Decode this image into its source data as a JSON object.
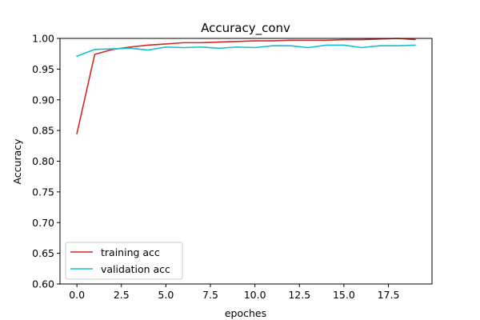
{
  "chart_data": {
    "type": "line",
    "title": "Accuracy_conv",
    "xlabel": "epoches",
    "ylabel": "Accuracy",
    "xlim": [
      -0.95,
      19.95
    ],
    "ylim": [
      0.6,
      1.0
    ],
    "x_ticks": [
      0.0,
      2.5,
      5.0,
      7.5,
      10.0,
      12.5,
      15.0,
      17.5
    ],
    "x_tick_labels": [
      "0.0",
      "2.5",
      "5.0",
      "7.5",
      "10.0",
      "12.5",
      "15.0",
      "17.5"
    ],
    "y_ticks": [
      0.6,
      0.65,
      0.7,
      0.75,
      0.8,
      0.85,
      0.9,
      0.95,
      1.0
    ],
    "y_tick_labels": [
      "0.60",
      "0.65",
      "0.70",
      "0.75",
      "0.80",
      "0.85",
      "0.90",
      "0.95",
      "1.00"
    ],
    "grid": false,
    "legend_position": "lower-left",
    "x": [
      0,
      1,
      2,
      3,
      4,
      5,
      6,
      7,
      8,
      9,
      10,
      11,
      12,
      13,
      14,
      15,
      16,
      17,
      18,
      19
    ],
    "series": [
      {
        "name": "training acc",
        "color": "#d62728",
        "values": [
          0.845,
          0.974,
          0.982,
          0.986,
          0.989,
          0.991,
          0.993,
          0.993,
          0.994,
          0.995,
          0.996,
          0.996,
          0.997,
          0.997,
          0.997,
          0.998,
          0.998,
          0.999,
          1.0,
          0.998
        ]
      },
      {
        "name": "validation acc",
        "color": "#17becf",
        "values": [
          0.971,
          0.982,
          0.983,
          0.984,
          0.981,
          0.986,
          0.985,
          0.986,
          0.984,
          0.986,
          0.985,
          0.988,
          0.988,
          0.985,
          0.989,
          0.989,
          0.985,
          0.988,
          0.988,
          0.989
        ]
      }
    ]
  }
}
